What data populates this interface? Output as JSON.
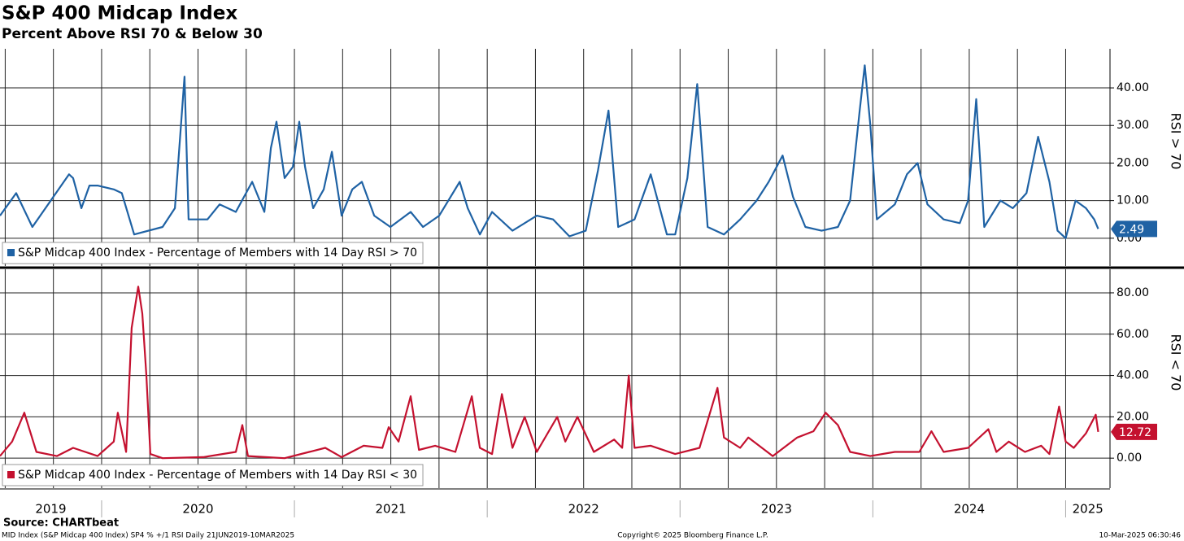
{
  "header": {
    "title": "S&P 400 Midcap Index",
    "subtitle": "Percent Above RSI 70 & Below 30"
  },
  "x_axis": {
    "categories": [
      "2019",
      "2020",
      "2021",
      "2022",
      "2023",
      "2024",
      "2025"
    ],
    "xlim": [
      2019.473,
      2025.23
    ],
    "xgrid": [
      2019.5,
      2019.75,
      2020,
      2020.25,
      2020.5,
      2020.75,
      2021,
      2021.25,
      2021.5,
      2021.75,
      2022,
      2022.25,
      2022.5,
      2022.75,
      2023,
      2023.25,
      2023.5,
      2023.75,
      2024,
      2024.25,
      2024.5,
      2024.75,
      2025
    ]
  },
  "chart_data": [
    {
      "type": "line",
      "axis_title": "RSI > 70",
      "ylim": [
        -7.4,
        50.4
      ],
      "grid": true,
      "yticks": [
        {
          "value": 0,
          "label": "0.00"
        },
        {
          "value": 10,
          "label": "10.00"
        },
        {
          "value": 20,
          "label": "20.00"
        },
        {
          "value": 30,
          "label": "30.00"
        },
        {
          "value": 40,
          "label": "40.00"
        }
      ],
      "x": [
        2019.473,
        2019.515,
        2019.557,
        2019.641,
        2019.831,
        2019.852,
        2019.895,
        2019.937,
        2019.979,
        2020.063,
        2020.105,
        2020.169,
        2020.316,
        2020.38,
        2020.43,
        2020.451,
        2020.549,
        2020.612,
        2020.696,
        2020.781,
        2020.844,
        2020.878,
        2020.907,
        2020.949,
        2020.992,
        2021.025,
        2021.055,
        2021.097,
        2021.152,
        2021.194,
        2021.245,
        2021.3,
        2021.35,
        2021.414,
        2021.498,
        2021.603,
        2021.667,
        2021.751,
        2021.857,
        2021.899,
        2021.962,
        2022.025,
        2022.131,
        2022.257,
        2022.342,
        2022.426,
        2022.511,
        2022.574,
        2022.629,
        2022.679,
        2022.764,
        2022.848,
        2022.932,
        2022.975,
        2023.038,
        2023.089,
        2023.143,
        2023.228,
        2023.312,
        2023.397,
        2023.46,
        2023.532,
        2023.586,
        2023.65,
        2023.734,
        2023.819,
        2023.882,
        2023.932,
        2023.958,
        2023.987,
        2024.021,
        2024.114,
        2024.177,
        2024.232,
        2024.283,
        2024.367,
        2024.451,
        2024.494,
        2024.536,
        2024.578,
        2024.662,
        2024.726,
        2024.797,
        2024.857,
        2024.916,
        2024.958,
        2025.0,
        2025.051,
        2025.105,
        2025.148,
        2025.169
      ],
      "series": [
        {
          "name": "S&P Midcap 400 Index - Percentage of Members with 14 Day RSI > 70",
          "color": "#1f62a4",
          "values": [
            6,
            9,
            12,
            3,
            17,
            16,
            8,
            14,
            14,
            13,
            12,
            1,
            3,
            8,
            43,
            5,
            5,
            9,
            7,
            15,
            7,
            24,
            31,
            16,
            19,
            31,
            19,
            8,
            13,
            23,
            6,
            13,
            15,
            6,
            3,
            7,
            3,
            6,
            15,
            8,
            1,
            7,
            2,
            6,
            5,
            0.5,
            2,
            18,
            34,
            3,
            5,
            17,
            1,
            1,
            16,
            41,
            3,
            1,
            5,
            10,
            15,
            22,
            11,
            3,
            2,
            3,
            10,
            34,
            46,
            30,
            5,
            9,
            17,
            20,
            9,
            5,
            4,
            10,
            37,
            3,
            10,
            8,
            12,
            27,
            15,
            2,
            0,
            10,
            8,
            5,
            2.49
          ]
        }
      ]
    },
    {
      "type": "line",
      "axis_title": "RSI < 70",
      "ylim": [
        -14.5,
        91.4
      ],
      "grid": true,
      "yticks": [
        {
          "value": 0,
          "label": "0.00"
        },
        {
          "value": 20,
          "label": "20.00"
        },
        {
          "value": 40,
          "label": "40.00"
        },
        {
          "value": 60,
          "label": "60.00"
        },
        {
          "value": 80,
          "label": "80.00"
        }
      ],
      "x": [
        2019.473,
        2019.536,
        2019.599,
        2019.662,
        2019.768,
        2019.852,
        2019.979,
        2020.063,
        2020.084,
        2020.127,
        2020.156,
        2020.19,
        2020.211,
        2020.232,
        2020.253,
        2020.316,
        2020.527,
        2020.696,
        2020.73,
        2020.759,
        2020.949,
        2021.16,
        2021.245,
        2021.359,
        2021.456,
        2021.489,
        2021.54,
        2021.603,
        2021.646,
        2021.73,
        2021.835,
        2021.92,
        2021.962,
        2022.025,
        2022.076,
        2022.131,
        2022.194,
        2022.257,
        2022.363,
        2022.405,
        2022.468,
        2022.553,
        2022.658,
        2022.7,
        2022.734,
        2022.764,
        2022.848,
        2022.975,
        2023.101,
        2023.194,
        2023.228,
        2023.312,
        2023.354,
        2023.481,
        2023.608,
        2023.692,
        2023.755,
        2023.819,
        2023.882,
        2023.987,
        2024.114,
        2024.241,
        2024.304,
        2024.367,
        2024.494,
        2024.599,
        2024.641,
        2024.705,
        2024.789,
        2024.873,
        2024.916,
        2024.966,
        2025.0,
        2025.042,
        2025.105,
        2025.156,
        2025.169
      ],
      "series": [
        {
          "name": "S&P Midcap 400 Index - Percentage of Members with 14 Day RSI < 30",
          "color": "#c4112f",
          "values": [
            1,
            8,
            22,
            3,
            1,
            5,
            1,
            8,
            22,
            3,
            63,
            83,
            70,
            40,
            2,
            0,
            0.5,
            3,
            16,
            1,
            0,
            5,
            0.5,
            6,
            5,
            15,
            8,
            30,
            4,
            6,
            3,
            30,
            5,
            2,
            31,
            5,
            20,
            3,
            20,
            8,
            20,
            3,
            9,
            5,
            40,
            5,
            6,
            2,
            5,
            34,
            10,
            5,
            10,
            1,
            10,
            13,
            22,
            16,
            3,
            1,
            3,
            3,
            13,
            3,
            5,
            14,
            3,
            8,
            3,
            6,
            2,
            25,
            8,
            5,
            12,
            21,
            12.72
          ]
        }
      ]
    }
  ],
  "footer": {
    "source": "Source: CHARTbeat",
    "description": "MID Index (S&P Midcap 400 Index) SP4 % +/1 RSI  Daily 21JUN2019-10MAR2025",
    "copyright": "Copyright© 2025 Bloomberg Finance L.P.",
    "timestamp": "10-Mar-2025 06:30:46"
  }
}
